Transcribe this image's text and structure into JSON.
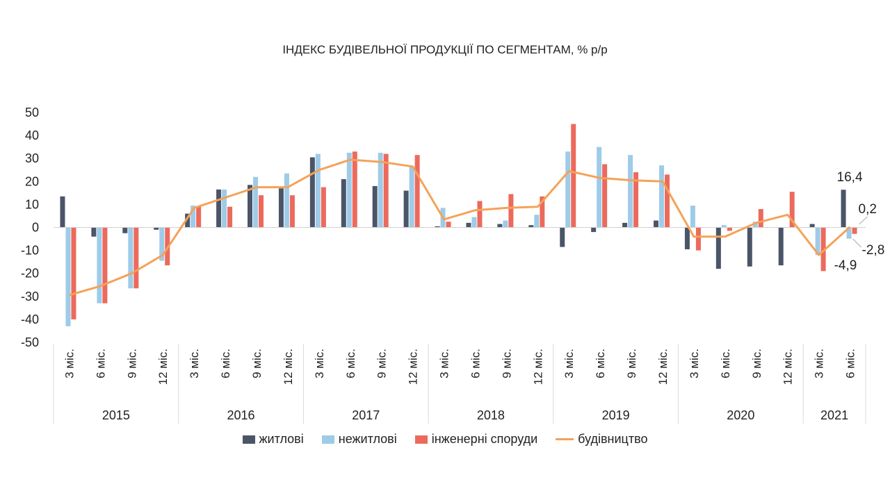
{
  "chart_data": {
    "type": "bar",
    "title": "ІНДЕКС БУДІВЕЛЬНОЇ ПРОДУКЦІЇ ПО СЕГМЕНТАМ,  % р/р",
    "ylim": [
      -50,
      50
    ],
    "yticks": [
      50,
      40,
      30,
      20,
      10,
      0,
      -10,
      -20,
      -30,
      -40,
      -50
    ],
    "grid": false,
    "legend_position": "bottom",
    "categories": [
      "3 міс.",
      "6 міс.",
      "9 міс.",
      "12 міс.",
      "3 міс.",
      "6 міс.",
      "9 міс.",
      "12 міс.",
      "3 міс.",
      "6 міс.",
      "9 міс.",
      "12 міс.",
      "3 міс.",
      "6 міс.",
      "9 міс.",
      "12 міс.",
      "3 міс.",
      "6 міс.",
      "9 міс.",
      "12 міс.",
      "3 міс.",
      "6 міс.",
      "9 міс.",
      "12 міс.",
      "3 міс.",
      "6 міс."
    ],
    "groups": [
      {
        "label": "2015",
        "count": 4
      },
      {
        "label": "2016",
        "count": 4
      },
      {
        "label": "2017",
        "count": 4
      },
      {
        "label": "2018",
        "count": 4
      },
      {
        "label": "2019",
        "count": 4
      },
      {
        "label": "2020",
        "count": 4
      },
      {
        "label": "2021",
        "count": 2
      }
    ],
    "series": [
      {
        "name": "житлові",
        "kind": "bar",
        "color": "#4a5568",
        "values": [
          13.5,
          -4,
          -2.5,
          -1,
          6,
          16.5,
          18.5,
          17,
          30.5,
          21,
          18,
          16,
          0.5,
          2,
          1.5,
          1,
          -8.5,
          -2,
          2,
          3,
          -9.5,
          -18,
          -17,
          -16.5,
          1.5,
          16.4
        ]
      },
      {
        "name": "нежитлові",
        "kind": "bar",
        "color": "#9ecbe8",
        "values": [
          -43,
          -33,
          -26.5,
          -14.5,
          9.5,
          16.5,
          22,
          23.5,
          32,
          32.5,
          32.5,
          26.5,
          8.5,
          4.5,
          3,
          5.5,
          33,
          35,
          31.5,
          27,
          9.5,
          1,
          2.5,
          0,
          -12,
          -4.9
        ]
      },
      {
        "name": "інженерні споруди",
        "kind": "bar",
        "color": "#ec6a5c",
        "values": [
          -40,
          -33,
          -26.5,
          -16.5,
          9,
          9,
          14,
          14,
          17.5,
          33,
          32,
          31.5,
          2.5,
          11.5,
          14.5,
          13.5,
          45,
          27.5,
          24,
          23,
          -10,
          -1.5,
          8,
          15.5,
          -19,
          -2.8
        ]
      },
      {
        "name": "будівництво",
        "kind": "line",
        "color": "#f4a259",
        "values": [
          -29.5,
          -25.5,
          -20,
          -12,
          8.5,
          13,
          17.5,
          17.5,
          25,
          29.5,
          28.5,
          26.5,
          3.5,
          7.5,
          8.5,
          9,
          24.5,
          21.5,
          20.5,
          20,
          -4,
          -4,
          2,
          5.5,
          -12,
          0.2
        ]
      }
    ],
    "annotations": [
      "16,4",
      "0,2",
      "-2,8",
      "-4,9"
    ]
  }
}
